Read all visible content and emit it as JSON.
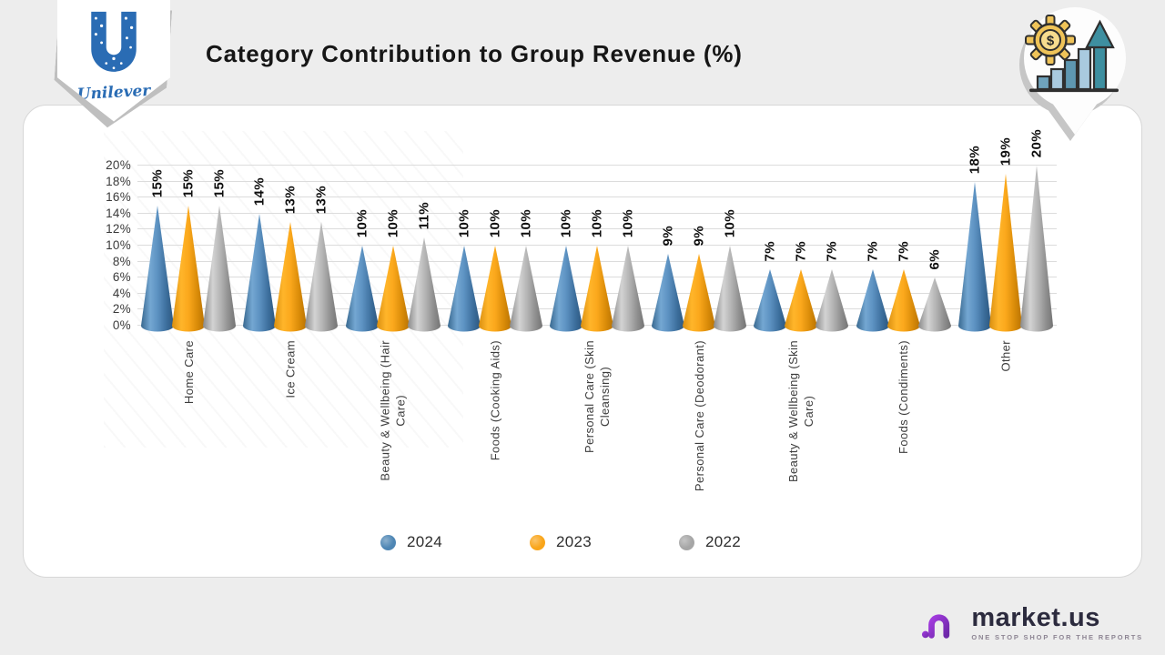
{
  "header": {
    "title": "Category Contribution to Group Revenue (%)"
  },
  "branding": {
    "unilever": "Unilever"
  },
  "icons": {
    "dollar": "$"
  },
  "chart_data": {
    "type": "bar",
    "shape": "3d-cone",
    "title": "Category Contribution to Group Revenue (%)",
    "unit": "%",
    "categories": [
      "Home Care",
      "Ice Cream",
      "Beauty & Wellbeing (Hair Care)",
      "Foods (Cooking Aids)",
      "Personal Care (Skin Cleansing)",
      "Personal Care (Deodorant)",
      "Beauty & Wellbeing (Skin Care)",
      "Foods (Condiments)",
      "Other"
    ],
    "category_label_lines": [
      [
        "Home Care"
      ],
      [
        "Ice Cream"
      ],
      [
        "Beauty & Wellbeing (Hair",
        "Care)"
      ],
      [
        "Foods (Cooking Aids)"
      ],
      [
        "Personal Care (Skin",
        "Cleansing)"
      ],
      [
        "Personal Care (Deodorant)"
      ],
      [
        "Beauty & Wellbeing (Skin",
        "Care)"
      ],
      [
        "Foods (Condiments)"
      ],
      [
        "Other"
      ]
    ],
    "series": [
      {
        "name": "2024",
        "color": "#4e86b4",
        "gradient": [
          [
            "0%",
            "#38688f"
          ],
          [
            "28%",
            "#74a7d2"
          ],
          [
            "50%",
            "#5d92c2"
          ],
          [
            "78%",
            "#3c6e9c"
          ],
          [
            "100%",
            "#2c567e"
          ]
        ],
        "values": [
          15,
          14,
          10,
          10,
          10,
          9,
          7,
          7,
          18
        ]
      },
      {
        "name": "2023",
        "color": "#f9a51a",
        "gradient": [
          [
            "0%",
            "#d98e10"
          ],
          [
            "28%",
            "#ffb52a"
          ],
          [
            "50%",
            "#fba81c"
          ],
          [
            "78%",
            "#d88a08"
          ],
          [
            "100%",
            "#b87303"
          ]
        ],
        "values": [
          15,
          13,
          10,
          10,
          10,
          9,
          7,
          7,
          19
        ]
      },
      {
        "name": "2022",
        "color": "#a6a6a6",
        "gradient": [
          [
            "0%",
            "#898989"
          ],
          [
            "30%",
            "#d3d3d3"
          ],
          [
            "55%",
            "#b2b2b2"
          ],
          [
            "80%",
            "#8d8d8d"
          ],
          [
            "100%",
            "#747474"
          ]
        ],
        "values": [
          15,
          13,
          11,
          10,
          10,
          10,
          7,
          6,
          20
        ]
      }
    ],
    "ylim": [
      0,
      20
    ],
    "ytick_step": 2,
    "ytick_labels": [
      "0%",
      "2%",
      "4%",
      "6%",
      "8%",
      "10%",
      "12%",
      "14%",
      "16%",
      "18%",
      "20%"
    ],
    "grid": true,
    "legend_position": "bottom",
    "value_label_format": "{v}%"
  },
  "footer": {
    "brand": "market",
    "brand_suffix": ".us",
    "tagline": "ONE STOP SHOP FOR THE REPORTS"
  }
}
